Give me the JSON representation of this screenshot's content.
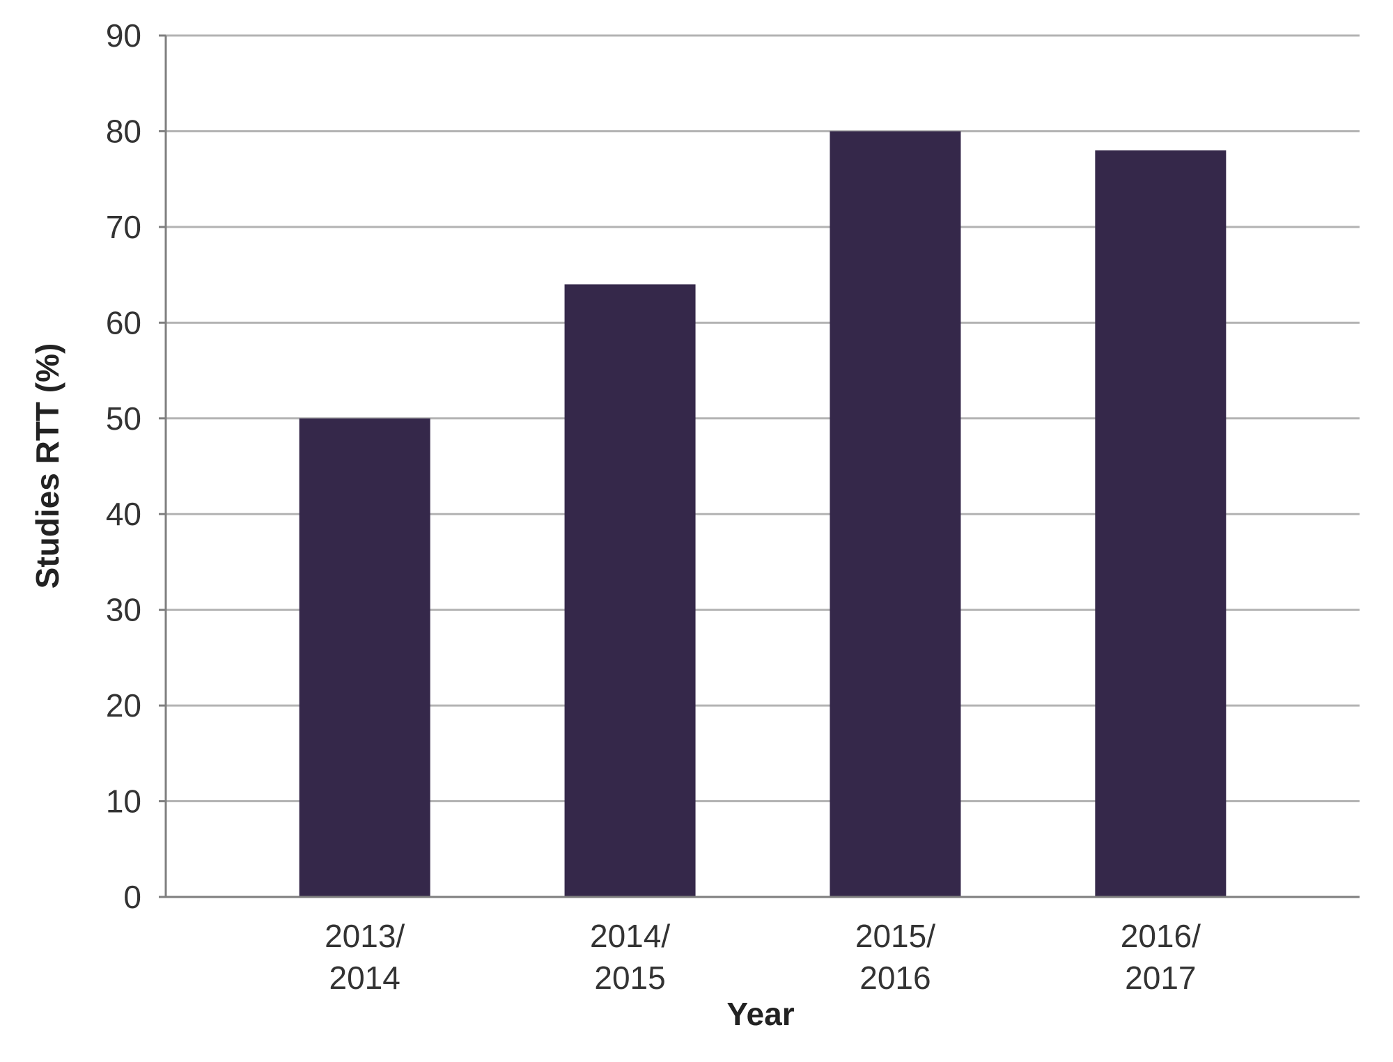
{
  "chart_data": {
    "type": "bar",
    "title": "",
    "xlabel": "Year",
    "ylabel": "Studies RTT (%)",
    "categories": [
      [
        "2013/",
        "2014"
      ],
      [
        "2014/",
        "2015"
      ],
      [
        "2015/",
        "2016"
      ],
      [
        "2016/",
        "2017"
      ]
    ],
    "values": [
      50,
      64,
      80,
      78
    ],
    "ylim": [
      0,
      90
    ],
    "yticks": [
      "0",
      "10",
      "20",
      "30",
      "40",
      "50",
      "60",
      "70",
      "80",
      "90"
    ],
    "grid": true,
    "legend": "none",
    "colors": {
      "bar": "#35284a",
      "grid": "#b3b3b3",
      "axis": "#7f7f7f"
    }
  }
}
